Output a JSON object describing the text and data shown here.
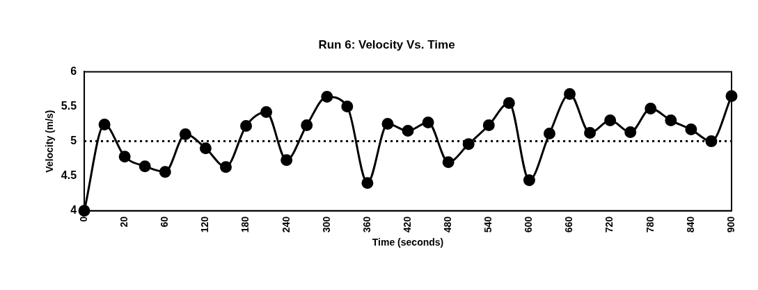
{
  "chart_data": {
    "type": "line",
    "title": "Run 6: Velocity Vs. Time",
    "xlabel": "Time (seconds)",
    "ylabel": "Velocity (m/s)",
    "categories": [
      "0",
      null,
      "20",
      null,
      "60",
      null,
      "120",
      null,
      "180",
      null,
      "240",
      null,
      "300",
      null,
      "360",
      null,
      "420",
      null,
      "480",
      null,
      "540",
      null,
      "600",
      null,
      "660",
      null,
      "720",
      null,
      "780",
      null,
      "840",
      null,
      "900"
    ],
    "series": [
      {
        "color": "#000000",
        "values": [
          4,
          5.24,
          4.78,
          4.64,
          4.56,
          5.1,
          4.9,
          4.63,
          5.22,
          5.42,
          4.73,
          5.23,
          5.64,
          5.5,
          4.4,
          5.25,
          5.15,
          5.27,
          4.7,
          4.96,
          5.23,
          5.55,
          4.44,
          5.11,
          5.68,
          5.12,
          5.3,
          5.13,
          5.47,
          5.3,
          5.17,
          5.0,
          5.65
        ]
      }
    ],
    "ylim": [
      4,
      6
    ],
    "yticks": [
      4,
      4.5,
      5,
      5.5,
      6
    ],
    "ref_lines": [
      {
        "axis": "y",
        "value": 5,
        "color": "#000000",
        "line_style": "dotted"
      }
    ],
    "grid": false,
    "legend": false,
    "marker": "circle",
    "line_style": "solid"
  }
}
